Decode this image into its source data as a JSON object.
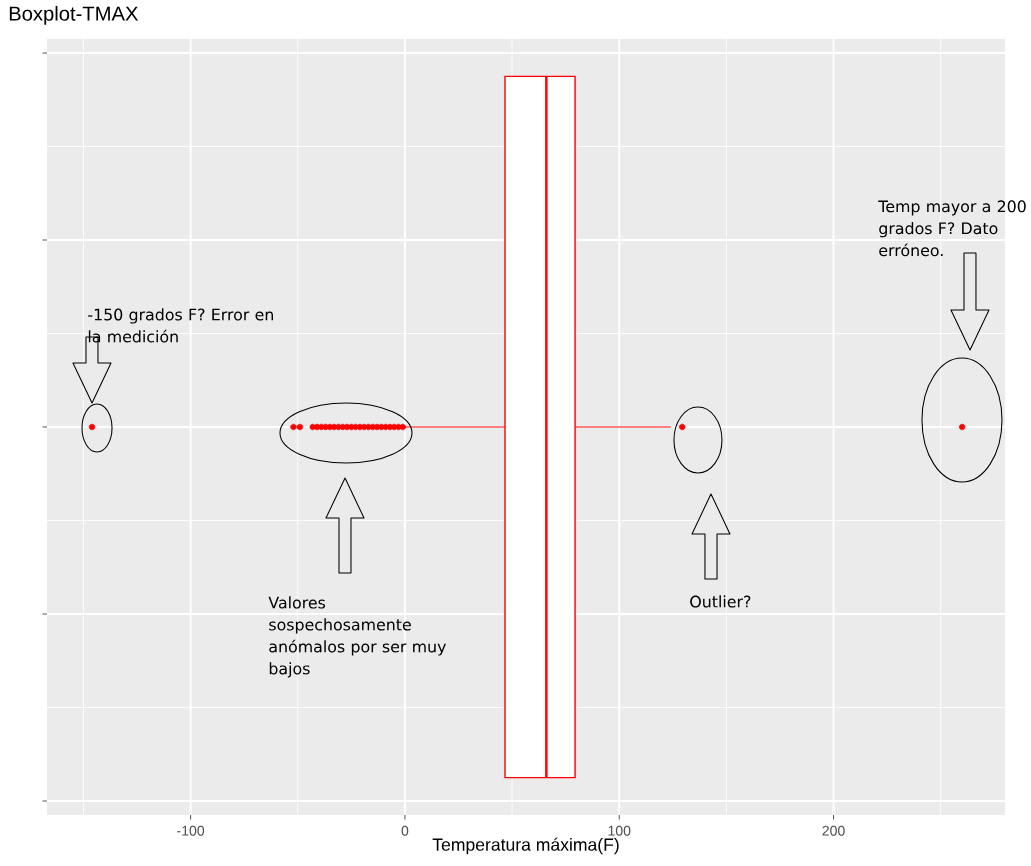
{
  "chart_data": {
    "type": "box",
    "orientation": "horizontal",
    "title": "Boxplot-TMAX",
    "xlabel": "Temperatura máxima(F)",
    "boxes": [
      {
        "low": 0,
        "q1": 46.7,
        "median": 66,
        "q3": 79.4,
        "high": 124,
        "outliers": [
          -146,
          -52,
          -49,
          -43,
          -41,
          -39,
          -37,
          -35,
          -33,
          -31,
          -29,
          -27,
          -25,
          -23,
          -21,
          -19,
          -17,
          -15,
          -13,
          -11,
          -9,
          -7,
          -5,
          -3,
          -1,
          129.4,
          260
        ]
      }
    ],
    "color": "#ff0000",
    "xlim": [
      -167,
      280
    ],
    "xticks": [
      -100,
      0,
      100,
      200
    ],
    "tick_labels": "x",
    "grid": true,
    "annotations": [
      "-150 grados F? Error en la medición",
      "Valores sospechosamente anómalos por ser muy bajos",
      "Outlier?",
      "Temp mayor a 200 grados F? Dato erróneo."
    ]
  }
}
